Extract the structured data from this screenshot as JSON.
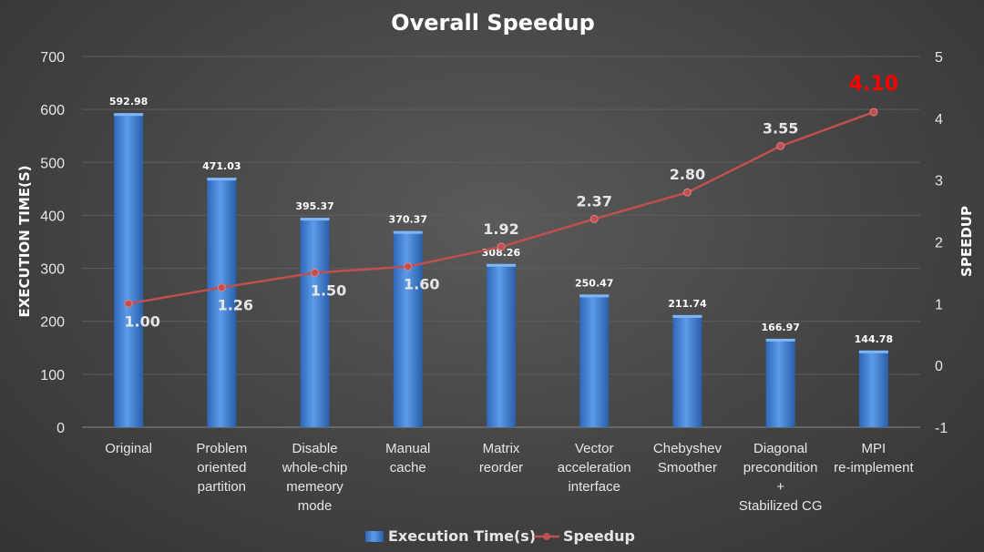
{
  "chart_data": {
    "type": "bar+line",
    "title": "Overall Speedup",
    "categories": [
      [
        "Original"
      ],
      [
        "Problem",
        "oriented",
        "partition"
      ],
      [
        "Disable",
        "whole-chip",
        "memeory",
        "mode"
      ],
      [
        "Manual",
        "cache"
      ],
      [
        "Matrix",
        "reorder"
      ],
      [
        "Vector",
        "acceleration",
        "interface"
      ],
      [
        "Chebyshev",
        "Smoother"
      ],
      [
        "Diagonal",
        "precondition",
        "+",
        "Stabilized CG"
      ],
      [
        "MPI",
        "re-implement"
      ]
    ],
    "series": [
      {
        "name": "Execution Time(s)",
        "type": "bar",
        "axis": "left",
        "values": [
          592.98,
          471.03,
          395.37,
          370.37,
          308.26,
          250.47,
          211.74,
          166.97,
          144.78
        ],
        "labels": [
          "592.98",
          "471.03",
          "395.37",
          "370.37",
          "308.26",
          "250.47",
          "211.74",
          "166.97",
          "144.78"
        ],
        "color": "#3a7bd5"
      },
      {
        "name": "Speedup",
        "type": "line",
        "axis": "right",
        "values": [
          1.0,
          1.26,
          1.5,
          1.6,
          1.92,
          2.37,
          2.8,
          3.55,
          4.1
        ],
        "labels": [
          "1.00",
          "1.26",
          "1.50",
          "1.60",
          "1.92",
          "2.37",
          "2.80",
          "3.55",
          "4.10"
        ],
        "color": "#c0504d",
        "highlight_color": "#ff0000"
      }
    ],
    "ylabel_left": "EXECUTION TIME(S)",
    "ylabel_right": "SPEEDUP",
    "ylim_left": [
      0,
      700
    ],
    "yticks_left": [
      "0",
      "100",
      "200",
      "300",
      "400",
      "500",
      "600",
      "700"
    ],
    "ylim_right": [
      -1,
      5
    ],
    "yticks_right": [
      "-1",
      "0",
      "1",
      "2",
      "3",
      "4",
      "5"
    ],
    "grid": true,
    "legend_position": "bottom-center"
  }
}
